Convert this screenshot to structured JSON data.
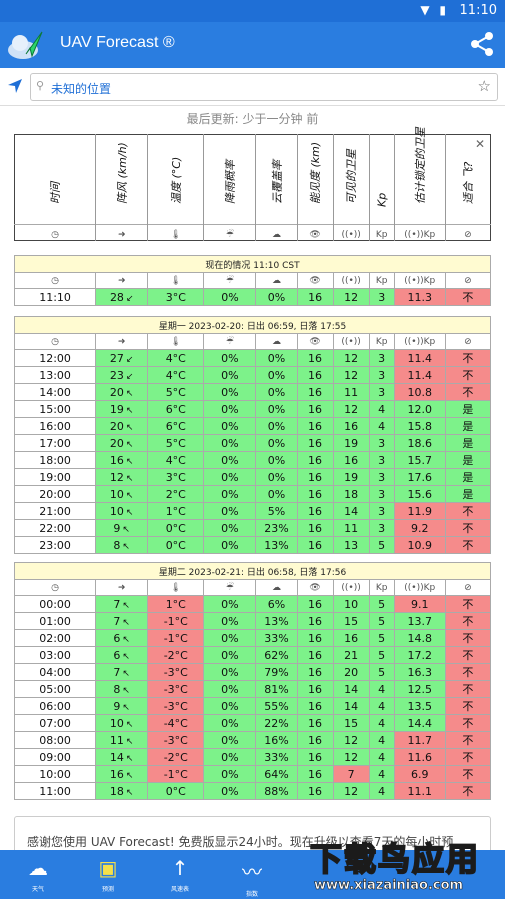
{
  "status": {
    "time": "11:10"
  },
  "app": {
    "title": "UAV Forecast ®"
  },
  "search": {
    "value": "未知的位置"
  },
  "last_updated": "最后更新: 少于一分钟 前",
  "columns": [
    "时间",
    "阵风 (km/h)",
    "温度 (°C)",
    "降雨概率",
    "云覆盖率",
    "能见度 (km)",
    "可见的卫星",
    "Kp",
    "估计锁定的卫星",
    "适合 飞?"
  ],
  "col_icons": [
    "◷",
    "➜",
    "🌡",
    "☔",
    "☁",
    "👁",
    "((•))",
    "Kp",
    "((•))Kp",
    "⊘"
  ],
  "current": {
    "title": "现在的情况 11:10 CST",
    "row": {
      "time": "11:10",
      "gust": "28",
      "dir": "↙",
      "temp": "3°C",
      "rain": "0%",
      "cloud": "0%",
      "vis": "16",
      "sats": "12",
      "kp": "3",
      "locked": "11.3",
      "fly": "不",
      "colors": [
        "w",
        "g",
        "g",
        "g",
        "g",
        "g",
        "g",
        "g",
        "r",
        "r"
      ]
    }
  },
  "day1": {
    "title": "星期一 2023-02-20: 日出 06:59, 日落 17:55",
    "rows": [
      {
        "time": "12:00",
        "gust": "27",
        "dir": "↙",
        "temp": "4°C",
        "rain": "0%",
        "cloud": "0%",
        "vis": "16",
        "sats": "12",
        "kp": "3",
        "locked": "11.4",
        "fly": "不",
        "colors": [
          "w",
          "g",
          "g",
          "g",
          "g",
          "g",
          "g",
          "g",
          "r",
          "r"
        ]
      },
      {
        "time": "13:00",
        "gust": "23",
        "dir": "↙",
        "temp": "4°C",
        "rain": "0%",
        "cloud": "0%",
        "vis": "16",
        "sats": "12",
        "kp": "3",
        "locked": "11.4",
        "fly": "不",
        "colors": [
          "w",
          "g",
          "g",
          "g",
          "g",
          "g",
          "g",
          "g",
          "r",
          "r"
        ]
      },
      {
        "time": "14:00",
        "gust": "20",
        "dir": "↖",
        "temp": "5°C",
        "rain": "0%",
        "cloud": "0%",
        "vis": "16",
        "sats": "11",
        "kp": "3",
        "locked": "10.8",
        "fly": "不",
        "colors": [
          "w",
          "g",
          "g",
          "g",
          "g",
          "g",
          "g",
          "g",
          "r",
          "r"
        ]
      },
      {
        "time": "15:00",
        "gust": "19",
        "dir": "↖",
        "temp": "6°C",
        "rain": "0%",
        "cloud": "0%",
        "vis": "16",
        "sats": "12",
        "kp": "4",
        "locked": "12.0",
        "fly": "是",
        "colors": [
          "w",
          "g",
          "g",
          "g",
          "g",
          "g",
          "g",
          "g",
          "g",
          "g"
        ]
      },
      {
        "time": "16:00",
        "gust": "20",
        "dir": "↖",
        "temp": "6°C",
        "rain": "0%",
        "cloud": "0%",
        "vis": "16",
        "sats": "16",
        "kp": "4",
        "locked": "15.8",
        "fly": "是",
        "colors": [
          "w",
          "g",
          "g",
          "g",
          "g",
          "g",
          "g",
          "g",
          "g",
          "g"
        ]
      },
      {
        "time": "17:00",
        "gust": "20",
        "dir": "↖",
        "temp": "5°C",
        "rain": "0%",
        "cloud": "0%",
        "vis": "16",
        "sats": "19",
        "kp": "3",
        "locked": "18.6",
        "fly": "是",
        "colors": [
          "w",
          "g",
          "g",
          "g",
          "g",
          "g",
          "g",
          "g",
          "g",
          "g"
        ]
      },
      {
        "time": "18:00",
        "gust": "16",
        "dir": "↖",
        "temp": "4°C",
        "rain": "0%",
        "cloud": "0%",
        "vis": "16",
        "sats": "16",
        "kp": "3",
        "locked": "15.7",
        "fly": "是",
        "colors": [
          "w",
          "g",
          "g",
          "g",
          "g",
          "g",
          "g",
          "g",
          "g",
          "g"
        ]
      },
      {
        "time": "19:00",
        "gust": "12",
        "dir": "↖",
        "temp": "3°C",
        "rain": "0%",
        "cloud": "0%",
        "vis": "16",
        "sats": "19",
        "kp": "3",
        "locked": "17.6",
        "fly": "是",
        "colors": [
          "w",
          "g",
          "g",
          "g",
          "g",
          "g",
          "g",
          "g",
          "g",
          "g"
        ]
      },
      {
        "time": "20:00",
        "gust": "10",
        "dir": "↖",
        "temp": "2°C",
        "rain": "0%",
        "cloud": "0%",
        "vis": "16",
        "sats": "18",
        "kp": "3",
        "locked": "15.6",
        "fly": "是",
        "colors": [
          "w",
          "g",
          "g",
          "g",
          "g",
          "g",
          "g",
          "g",
          "g",
          "g"
        ]
      },
      {
        "time": "21:00",
        "gust": "10",
        "dir": "↖",
        "temp": "1°C",
        "rain": "0%",
        "cloud": "5%",
        "vis": "16",
        "sats": "14",
        "kp": "3",
        "locked": "11.9",
        "fly": "不",
        "colors": [
          "w",
          "g",
          "g",
          "g",
          "g",
          "g",
          "g",
          "g",
          "r",
          "r"
        ]
      },
      {
        "time": "22:00",
        "gust": "9",
        "dir": "↖",
        "temp": "0°C",
        "rain": "0%",
        "cloud": "23%",
        "vis": "16",
        "sats": "11",
        "kp": "3",
        "locked": "9.2",
        "fly": "不",
        "colors": [
          "w",
          "g",
          "g",
          "g",
          "g",
          "g",
          "g",
          "g",
          "r",
          "r"
        ]
      },
      {
        "time": "23:00",
        "gust": "8",
        "dir": "↖",
        "temp": "0°C",
        "rain": "0%",
        "cloud": "13%",
        "vis": "16",
        "sats": "13",
        "kp": "5",
        "locked": "10.9",
        "fly": "不",
        "colors": [
          "w",
          "g",
          "g",
          "g",
          "g",
          "g",
          "g",
          "g",
          "r",
          "r"
        ]
      }
    ]
  },
  "day2": {
    "title": "星期二 2023-02-21: 日出 06:58, 日落 17:56",
    "rows": [
      {
        "time": "00:00",
        "gust": "7",
        "dir": "↖",
        "temp": "1°C",
        "rain": "0%",
        "cloud": "6%",
        "vis": "16",
        "sats": "10",
        "kp": "5",
        "locked": "9.1",
        "fly": "不",
        "colors": [
          "w",
          "g",
          "r",
          "g",
          "g",
          "g",
          "g",
          "g",
          "r",
          "r"
        ]
      },
      {
        "time": "01:00",
        "gust": "7",
        "dir": "↖",
        "temp": "-1°C",
        "rain": "0%",
        "cloud": "13%",
        "vis": "16",
        "sats": "15",
        "kp": "5",
        "locked": "13.7",
        "fly": "不",
        "colors": [
          "w",
          "g",
          "r",
          "g",
          "g",
          "g",
          "g",
          "g",
          "g",
          "r"
        ]
      },
      {
        "time": "02:00",
        "gust": "6",
        "dir": "↖",
        "temp": "-1°C",
        "rain": "0%",
        "cloud": "33%",
        "vis": "16",
        "sats": "16",
        "kp": "5",
        "locked": "14.8",
        "fly": "不",
        "colors": [
          "w",
          "g",
          "r",
          "g",
          "g",
          "g",
          "g",
          "g",
          "g",
          "r"
        ]
      },
      {
        "time": "03:00",
        "gust": "6",
        "dir": "↖",
        "temp": "-2°C",
        "rain": "0%",
        "cloud": "62%",
        "vis": "16",
        "sats": "21",
        "kp": "5",
        "locked": "17.2",
        "fly": "不",
        "colors": [
          "w",
          "g",
          "r",
          "g",
          "g",
          "g",
          "g",
          "g",
          "g",
          "r"
        ]
      },
      {
        "time": "04:00",
        "gust": "7",
        "dir": "↖",
        "temp": "-3°C",
        "rain": "0%",
        "cloud": "79%",
        "vis": "16",
        "sats": "20",
        "kp": "5",
        "locked": "16.3",
        "fly": "不",
        "colors": [
          "w",
          "g",
          "r",
          "g",
          "g",
          "g",
          "g",
          "g",
          "g",
          "r"
        ]
      },
      {
        "time": "05:00",
        "gust": "8",
        "dir": "↖",
        "temp": "-3°C",
        "rain": "0%",
        "cloud": "81%",
        "vis": "16",
        "sats": "14",
        "kp": "4",
        "locked": "12.5",
        "fly": "不",
        "colors": [
          "w",
          "g",
          "r",
          "g",
          "g",
          "g",
          "g",
          "g",
          "g",
          "r"
        ]
      },
      {
        "time": "06:00",
        "gust": "9",
        "dir": "↖",
        "temp": "-3°C",
        "rain": "0%",
        "cloud": "55%",
        "vis": "16",
        "sats": "14",
        "kp": "4",
        "locked": "13.5",
        "fly": "不",
        "colors": [
          "w",
          "g",
          "r",
          "g",
          "g",
          "g",
          "g",
          "g",
          "g",
          "r"
        ]
      },
      {
        "time": "07:00",
        "gust": "10",
        "dir": "↖",
        "temp": "-4°C",
        "rain": "0%",
        "cloud": "22%",
        "vis": "16",
        "sats": "15",
        "kp": "4",
        "locked": "14.4",
        "fly": "不",
        "colors": [
          "w",
          "g",
          "r",
          "g",
          "g",
          "g",
          "g",
          "g",
          "g",
          "r"
        ]
      },
      {
        "time": "08:00",
        "gust": "11",
        "dir": "↖",
        "temp": "-3°C",
        "rain": "0%",
        "cloud": "16%",
        "vis": "16",
        "sats": "12",
        "kp": "4",
        "locked": "11.7",
        "fly": "不",
        "colors": [
          "w",
          "g",
          "r",
          "g",
          "g",
          "g",
          "g",
          "g",
          "r",
          "r"
        ]
      },
      {
        "time": "09:00",
        "gust": "14",
        "dir": "↖",
        "temp": "-2°C",
        "rain": "0%",
        "cloud": "33%",
        "vis": "16",
        "sats": "12",
        "kp": "4",
        "locked": "11.6",
        "fly": "不",
        "colors": [
          "w",
          "g",
          "r",
          "g",
          "g",
          "g",
          "g",
          "g",
          "r",
          "r"
        ]
      },
      {
        "time": "10:00",
        "gust": "16",
        "dir": "↖",
        "temp": "-1°C",
        "rain": "0%",
        "cloud": "64%",
        "vis": "16",
        "sats": "7",
        "kp": "4",
        "locked": "6.9",
        "fly": "不",
        "colors": [
          "w",
          "g",
          "r",
          "g",
          "g",
          "g",
          "r",
          "g",
          "r",
          "r"
        ]
      },
      {
        "time": "11:00",
        "gust": "18",
        "dir": "↖",
        "temp": "0°C",
        "rain": "0%",
        "cloud": "88%",
        "vis": "16",
        "sats": "12",
        "kp": "4",
        "locked": "11.1",
        "fly": "不",
        "colors": [
          "w",
          "g",
          "g",
          "g",
          "g",
          "g",
          "g",
          "g",
          "r",
          "r"
        ]
      }
    ]
  },
  "banner": {
    "text": "感谢您使用 UAV Forecast! 免费版显示24小时。现在升级以查看7天的每小时预"
  },
  "bottom_nav": [
    {
      "label": "天气",
      "icon": "cloud-sun-icon"
    },
    {
      "label": "预测",
      "icon": "calendar-icon"
    },
    {
      "label": "风速表",
      "icon": "arrow-up-icon"
    },
    {
      "label": "指数",
      "icon": "pulse-icon"
    }
  ],
  "watermark": {
    "text": "下载鸟应用",
    "url": "www.xiazainiao.com"
  },
  "colors": {
    "primary": "#2a7de0",
    "green": "#7df28a",
    "red": "#f58b8b",
    "title_bg": "#fffbd1"
  }
}
